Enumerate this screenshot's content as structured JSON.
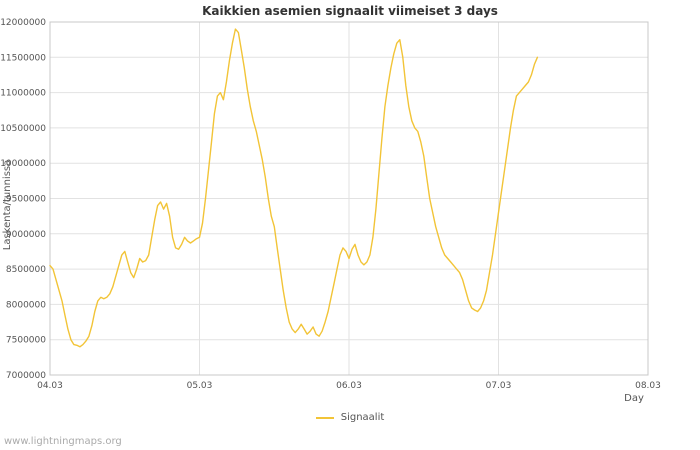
{
  "watermark": "www.lightningmaps.org",
  "colors": {
    "line": "#f2c437",
    "grid": "#e2e2e2",
    "border": "#c8c8c8",
    "tick_text": "#545454",
    "title_text": "#333333",
    "watermark_text": "#aaaaaa"
  },
  "legend": {
    "label": "Signaalit"
  },
  "chart_data": {
    "type": "line",
    "title": "Kaikkien asemien signaalit viimeiset 3 days",
    "xlabel": "Day",
    "ylabel": "Laskenta/tunnissa",
    "legend_position": "bottom-center",
    "grid": true,
    "xlim": [
      4,
      8
    ],
    "ylim": [
      7000000,
      12000000
    ],
    "x_ticks": [
      {
        "v": 4,
        "label": "04.03"
      },
      {
        "v": 5,
        "label": "05.03"
      },
      {
        "v": 6,
        "label": "06.03"
      },
      {
        "v": 7,
        "label": "07.03"
      },
      {
        "v": 8,
        "label": "08.03"
      }
    ],
    "y_ticks": [
      7000000,
      7500000,
      8000000,
      8500000,
      9000000,
      9500000,
      10000000,
      10500000,
      11000000,
      11500000,
      12000000
    ],
    "series": [
      {
        "name": "Signaalit",
        "color": "#f2c437",
        "points": [
          [
            4.0,
            8550000
          ],
          [
            4.02,
            8500000
          ],
          [
            4.04,
            8350000
          ],
          [
            4.06,
            8200000
          ],
          [
            4.08,
            8050000
          ],
          [
            4.1,
            7850000
          ],
          [
            4.12,
            7650000
          ],
          [
            4.14,
            7500000
          ],
          [
            4.16,
            7430000
          ],
          [
            4.18,
            7420000
          ],
          [
            4.2,
            7400000
          ],
          [
            4.22,
            7430000
          ],
          [
            4.24,
            7480000
          ],
          [
            4.26,
            7550000
          ],
          [
            4.28,
            7700000
          ],
          [
            4.3,
            7900000
          ],
          [
            4.32,
            8050000
          ],
          [
            4.34,
            8100000
          ],
          [
            4.36,
            8080000
          ],
          [
            4.38,
            8100000
          ],
          [
            4.4,
            8150000
          ],
          [
            4.42,
            8250000
          ],
          [
            4.44,
            8400000
          ],
          [
            4.46,
            8550000
          ],
          [
            4.48,
            8700000
          ],
          [
            4.5,
            8750000
          ],
          [
            4.52,
            8600000
          ],
          [
            4.54,
            8450000
          ],
          [
            4.56,
            8380000
          ],
          [
            4.58,
            8500000
          ],
          [
            4.6,
            8650000
          ],
          [
            4.62,
            8600000
          ],
          [
            4.64,
            8620000
          ],
          [
            4.66,
            8700000
          ],
          [
            4.68,
            8950000
          ],
          [
            4.7,
            9200000
          ],
          [
            4.72,
            9400000
          ],
          [
            4.74,
            9450000
          ],
          [
            4.76,
            9350000
          ],
          [
            4.78,
            9430000
          ],
          [
            4.8,
            9250000
          ],
          [
            4.82,
            8950000
          ],
          [
            4.84,
            8800000
          ],
          [
            4.86,
            8780000
          ],
          [
            4.88,
            8850000
          ],
          [
            4.9,
            8950000
          ],
          [
            4.92,
            8900000
          ],
          [
            4.94,
            8870000
          ],
          [
            4.96,
            8900000
          ],
          [
            4.98,
            8930000
          ],
          [
            5.0,
            8950000
          ],
          [
            5.02,
            9150000
          ],
          [
            5.04,
            9500000
          ],
          [
            5.06,
            9900000
          ],
          [
            5.08,
            10300000
          ],
          [
            5.1,
            10700000
          ],
          [
            5.12,
            10950000
          ],
          [
            5.14,
            11000000
          ],
          [
            5.16,
            10900000
          ],
          [
            5.18,
            11150000
          ],
          [
            5.2,
            11450000
          ],
          [
            5.22,
            11700000
          ],
          [
            5.24,
            11900000
          ],
          [
            5.26,
            11850000
          ],
          [
            5.28,
            11600000
          ],
          [
            5.3,
            11350000
          ],
          [
            5.32,
            11050000
          ],
          [
            5.34,
            10800000
          ],
          [
            5.36,
            10600000
          ],
          [
            5.38,
            10450000
          ],
          [
            5.4,
            10250000
          ],
          [
            5.42,
            10050000
          ],
          [
            5.44,
            9800000
          ],
          [
            5.46,
            9500000
          ],
          [
            5.48,
            9250000
          ],
          [
            5.5,
            9100000
          ],
          [
            5.52,
            8800000
          ],
          [
            5.54,
            8500000
          ],
          [
            5.56,
            8200000
          ],
          [
            5.58,
            7950000
          ],
          [
            5.6,
            7750000
          ],
          [
            5.62,
            7650000
          ],
          [
            5.64,
            7600000
          ],
          [
            5.66,
            7650000
          ],
          [
            5.68,
            7720000
          ],
          [
            5.7,
            7650000
          ],
          [
            5.72,
            7580000
          ],
          [
            5.74,
            7620000
          ],
          [
            5.76,
            7680000
          ],
          [
            5.78,
            7580000
          ],
          [
            5.8,
            7550000
          ],
          [
            5.82,
            7620000
          ],
          [
            5.84,
            7750000
          ],
          [
            5.86,
            7900000
          ],
          [
            5.88,
            8100000
          ],
          [
            5.9,
            8300000
          ],
          [
            5.92,
            8500000
          ],
          [
            5.94,
            8700000
          ],
          [
            5.96,
            8800000
          ],
          [
            5.98,
            8750000
          ],
          [
            6.0,
            8650000
          ],
          [
            6.02,
            8780000
          ],
          [
            6.04,
            8850000
          ],
          [
            6.06,
            8700000
          ],
          [
            6.08,
            8600000
          ],
          [
            6.1,
            8560000
          ],
          [
            6.12,
            8600000
          ],
          [
            6.14,
            8700000
          ],
          [
            6.16,
            8950000
          ],
          [
            6.18,
            9350000
          ],
          [
            6.2,
            9850000
          ],
          [
            6.22,
            10350000
          ],
          [
            6.24,
            10800000
          ],
          [
            6.26,
            11100000
          ],
          [
            6.28,
            11350000
          ],
          [
            6.3,
            11550000
          ],
          [
            6.32,
            11700000
          ],
          [
            6.34,
            11750000
          ],
          [
            6.36,
            11500000
          ],
          [
            6.38,
            11100000
          ],
          [
            6.4,
            10800000
          ],
          [
            6.42,
            10600000
          ],
          [
            6.44,
            10500000
          ],
          [
            6.46,
            10450000
          ],
          [
            6.48,
            10300000
          ],
          [
            6.5,
            10100000
          ],
          [
            6.52,
            9800000
          ],
          [
            6.54,
            9500000
          ],
          [
            6.56,
            9300000
          ],
          [
            6.58,
            9100000
          ],
          [
            6.6,
            8950000
          ],
          [
            6.62,
            8800000
          ],
          [
            6.64,
            8700000
          ],
          [
            6.66,
            8650000
          ],
          [
            6.68,
            8600000
          ],
          [
            6.7,
            8550000
          ],
          [
            6.72,
            8500000
          ],
          [
            6.74,
            8450000
          ],
          [
            6.76,
            8350000
          ],
          [
            6.78,
            8200000
          ],
          [
            6.8,
            8050000
          ],
          [
            6.82,
            7950000
          ],
          [
            6.84,
            7920000
          ],
          [
            6.86,
            7900000
          ],
          [
            6.88,
            7950000
          ],
          [
            6.9,
            8050000
          ],
          [
            6.92,
            8200000
          ],
          [
            6.94,
            8450000
          ],
          [
            6.96,
            8700000
          ],
          [
            6.98,
            9000000
          ],
          [
            7.0,
            9300000
          ],
          [
            7.02,
            9600000
          ],
          [
            7.04,
            9900000
          ],
          [
            7.06,
            10200000
          ],
          [
            7.08,
            10500000
          ],
          [
            7.1,
            10750000
          ],
          [
            7.12,
            10950000
          ],
          [
            7.14,
            11000000
          ],
          [
            7.16,
            11050000
          ],
          [
            7.18,
            11100000
          ],
          [
            7.2,
            11150000
          ],
          [
            7.22,
            11250000
          ],
          [
            7.24,
            11400000
          ],
          [
            7.26,
            11500000
          ]
        ]
      }
    ]
  }
}
